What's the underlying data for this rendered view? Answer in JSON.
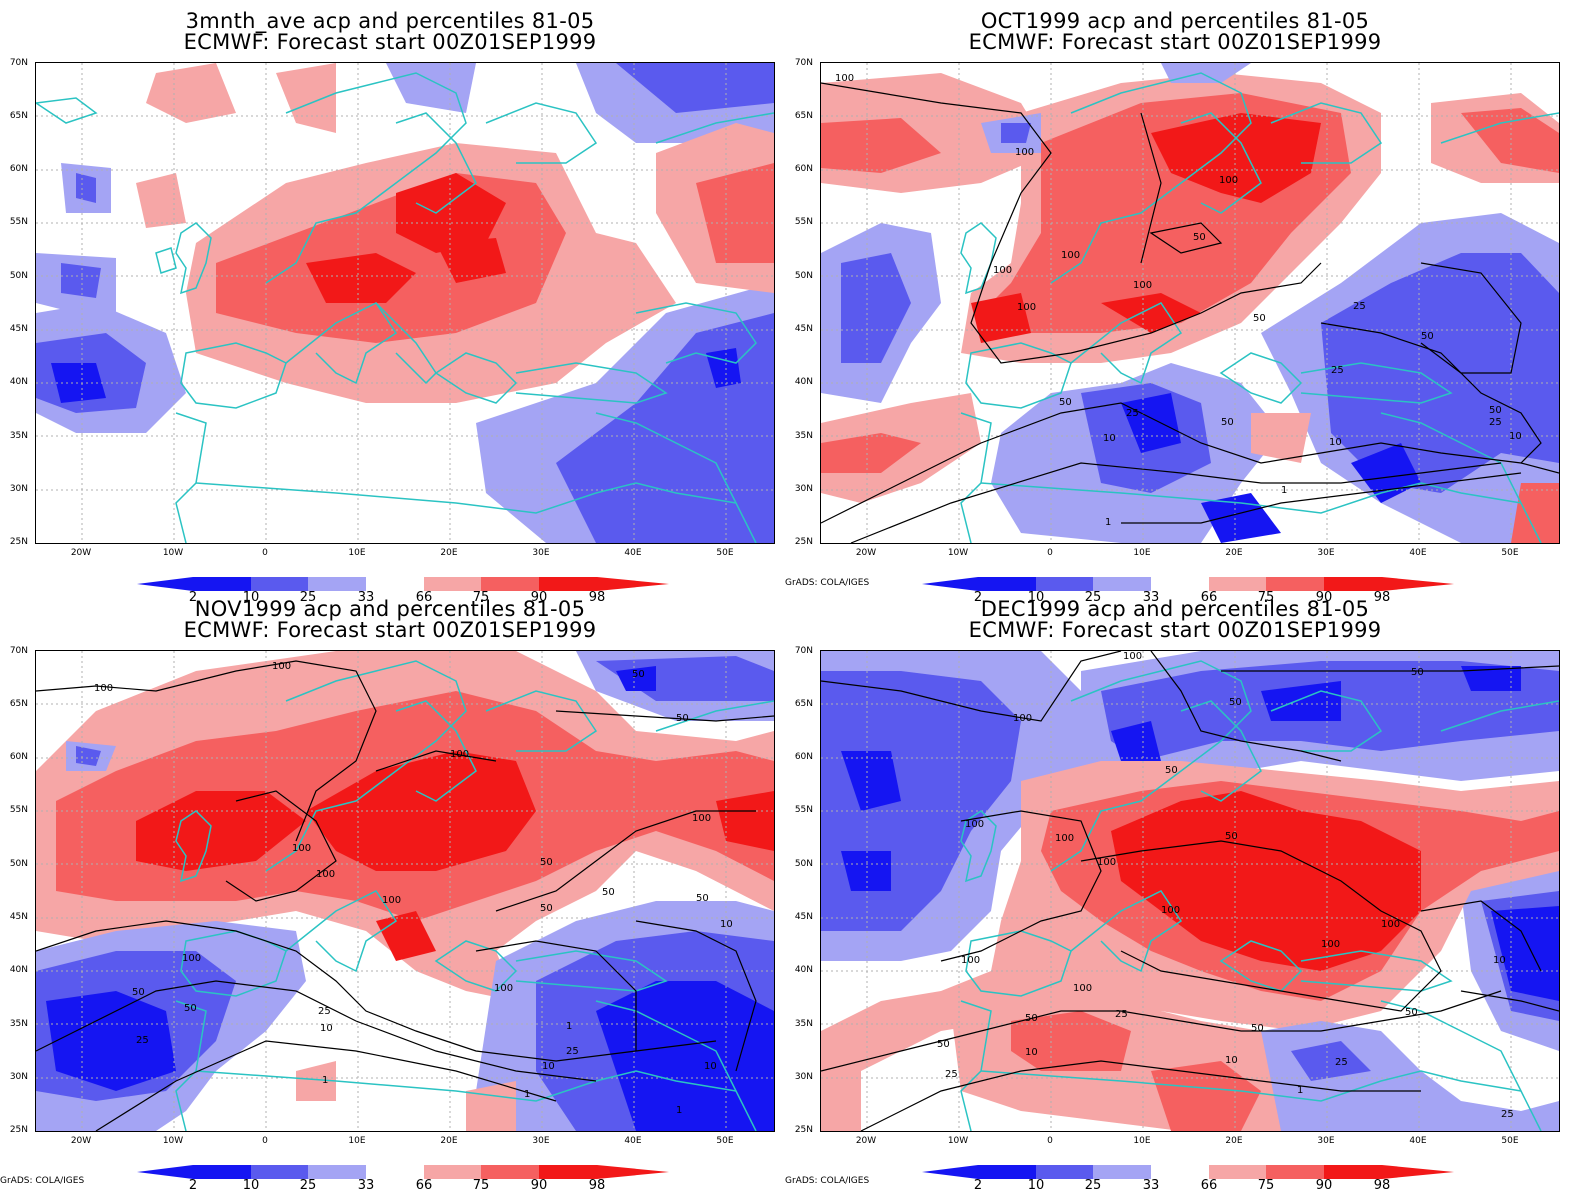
{
  "colors": {
    "blue_dark": "#1515f2",
    "blue_mid": "#5a5aee",
    "blue_light": "#a4a4f4",
    "red_light": "#f6a6a6",
    "red_mid": "#f56060",
    "red_dark": "#f21818",
    "coast": "#2bc3c3",
    "contour": "#000000"
  },
  "panels": [
    {
      "title_line1": "3mnth_ave acp and percentiles 81-05",
      "title_line2": "ECMWF: Forecast start 00Z01SEP1999",
      "credit": ""
    },
    {
      "title_line1": "OCT1999 acp and percentiles 81-05",
      "title_line2": "ECMWF: Forecast start 00Z01SEP1999",
      "credit": "GrADS: COLA/IGES"
    },
    {
      "title_line1": "NOV1999 acp and percentiles 81-05",
      "title_line2": "ECMWF: Forecast start 00Z01SEP1999",
      "credit": "GrADS: COLA/IGES"
    },
    {
      "title_line1": "DEC1999 acp and percentiles 81-05",
      "title_line2": "ECMWF: Forecast start 00Z01SEP1999",
      "credit": "GrADS: COLA/IGES"
    }
  ],
  "lat_ticks": [
    "70N",
    "65N",
    "60N",
    "55N",
    "50N",
    "45N",
    "40N",
    "35N",
    "30N",
    "25N"
  ],
  "lon_ticks": [
    "20W",
    "10W",
    "0",
    "10E",
    "20E",
    "30E",
    "40E",
    "50E"
  ],
  "colorbar_labels": [
    "2",
    "10",
    "25",
    "33",
    "66",
    "75",
    "90",
    "98"
  ],
  "contour_labels": {
    "oct": [
      "100",
      "100",
      "100",
      "100",
      "100",
      "100",
      "100",
      "50",
      "50",
      "50",
      "50",
      "50",
      "50",
      "25",
      "25",
      "25",
      "25",
      "10",
      "10",
      "10",
      "1",
      "1"
    ],
    "nov": [
      "100",
      "100",
      "100",
      "100",
      "100",
      "100",
      "100",
      "100",
      "100",
      "50",
      "50",
      "50",
      "50",
      "50",
      "50",
      "50",
      "50",
      "25",
      "25",
      "25",
      "10",
      "10",
      "10",
      "10",
      "1",
      "1",
      "1",
      "1"
    ],
    "dec": [
      "100",
      "100",
      "100",
      "100",
      "100",
      "100",
      "100",
      "100",
      "100",
      "100",
      "50",
      "50",
      "50",
      "50",
      "50",
      "50",
      "50",
      "50",
      "25",
      "25",
      "25",
      "10",
      "10",
      "10",
      "1",
      "25"
    ]
  }
}
